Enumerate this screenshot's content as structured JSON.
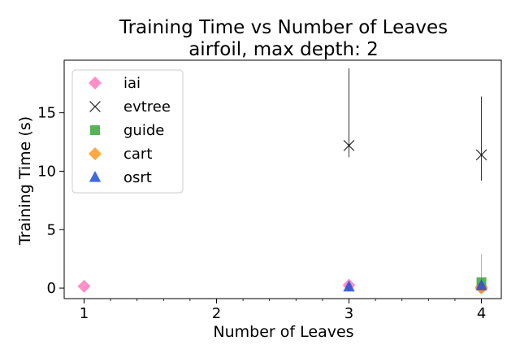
{
  "chart_data": {
    "type": "scatter",
    "title": "Training Time vs Number of Leaves",
    "subtitle": "airfoil, max depth: 2",
    "xlabel": "Number of Leaves",
    "ylabel": "Training Time (s)",
    "xlim": [
      0.85,
      4.15
    ],
    "ylim": [
      -0.9,
      19.5
    ],
    "xticks": [
      1,
      2,
      3,
      4
    ],
    "yticks": [
      0,
      5,
      10,
      15
    ],
    "legend_position": "top-left",
    "series": [
      {
        "name": "iai",
        "marker": "diamond",
        "color": "#ff69b4",
        "points": [
          {
            "x": 1,
            "y": 0.15
          },
          {
            "x": 3,
            "y": 0.25
          },
          {
            "x": 4,
            "y": 0.1,
            "yerr_low": 0,
            "yerr_high": 2.9
          }
        ]
      },
      {
        "name": "evtree",
        "marker": "x",
        "color": "#000000",
        "points": [
          {
            "x": 3,
            "y": 12.2,
            "yerr_low": 11.2,
            "yerr_high": 18.8
          },
          {
            "x": 4,
            "y": 11.4,
            "yerr_low": 9.2,
            "yerr_high": 16.4
          }
        ]
      },
      {
        "name": "guide",
        "marker": "square",
        "color": "#2ca02c",
        "points": [
          {
            "x": 4,
            "y": 0.5
          }
        ]
      },
      {
        "name": "cart",
        "marker": "diamond",
        "color": "#ff8c00",
        "points": [
          {
            "x": 4,
            "y": 0.0
          }
        ]
      },
      {
        "name": "osrt",
        "marker": "triangle",
        "color": "#1f4fd9",
        "points": [
          {
            "x": 3,
            "y": 0.1
          },
          {
            "x": 4,
            "y": 0.2
          }
        ]
      }
    ]
  }
}
